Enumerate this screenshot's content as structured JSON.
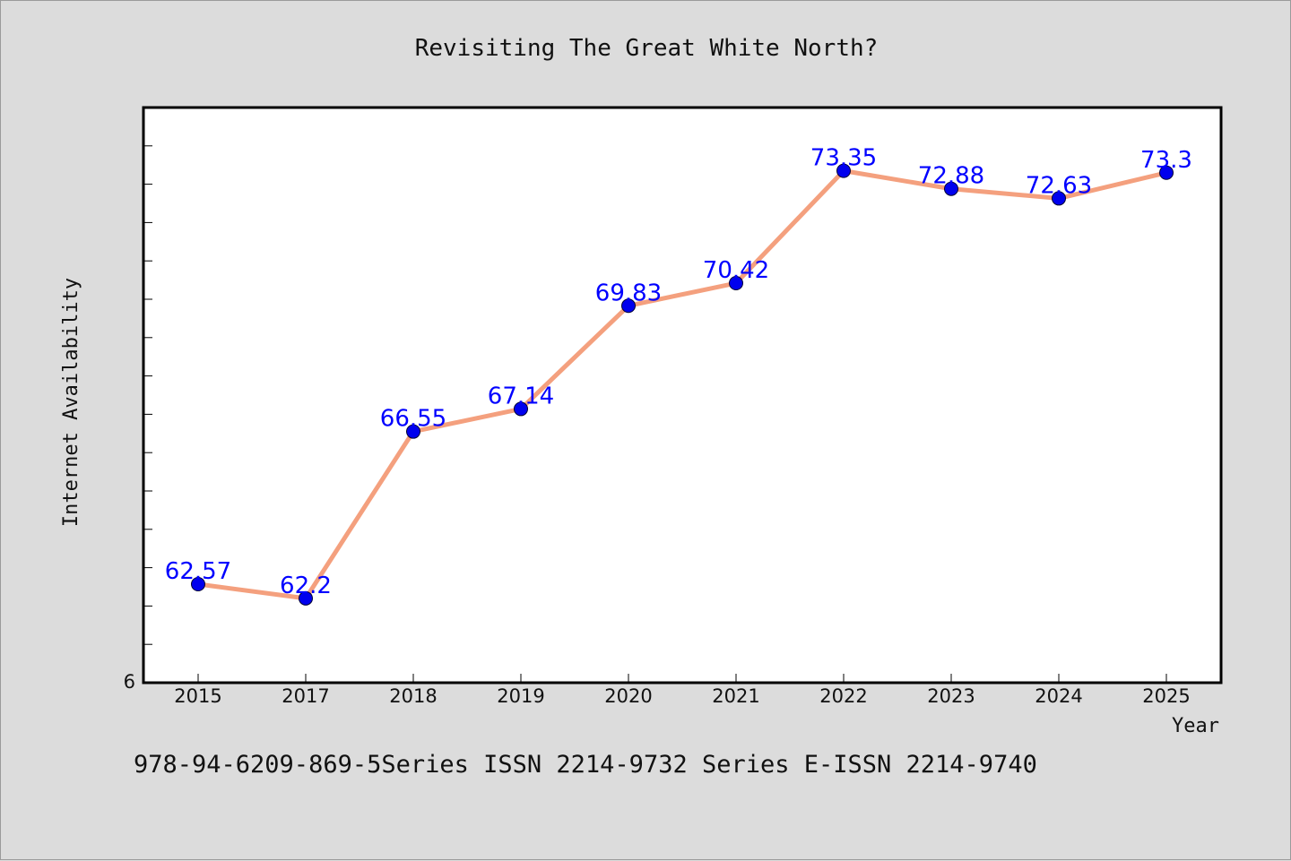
{
  "chart_data": {
    "type": "line",
    "title": "Revisiting The Great White North?",
    "xlabel": "Year",
    "ylabel": "Internet Availability",
    "categories": [
      "2015",
      "2017",
      "2018",
      "2019",
      "2020",
      "2021",
      "2022",
      "2023",
      "2024",
      "2025"
    ],
    "values": [
      62.57,
      62.2,
      66.55,
      67.14,
      69.83,
      70.42,
      73.35,
      72.88,
      72.63,
      73.3
    ],
    "data_labels": [
      "62.57",
      "62.2",
      "66.55",
      "67.14",
      "69.83",
      "70.42",
      "73.35",
      "72.88",
      "72.63",
      "73.3"
    ],
    "ylim": [
      60,
      75
    ],
    "y_tick_labels": [
      "6"
    ],
    "grid": false,
    "legend": "none",
    "line_color": "#f4a07e",
    "marker_color": "#0000ee",
    "label_color": "#0000ff"
  },
  "footer": {
    "text": "978-94-6209-869-5Series ISSN 2214-9732 Series E-ISSN 2214-9740"
  }
}
